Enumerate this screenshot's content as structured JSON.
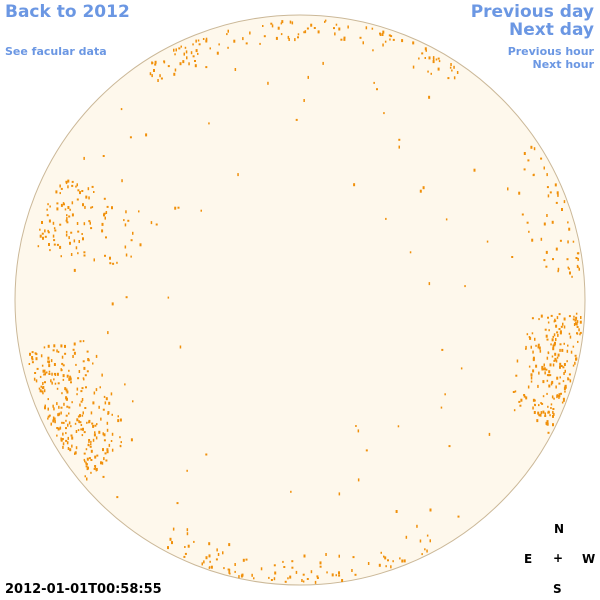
{
  "nav": {
    "back": "Back to 2012",
    "facular": "See facular data",
    "previous_day": "Previous day",
    "next_day": "Next day",
    "previous_hour": "Previous hour",
    "next_hour": "Next hour"
  },
  "timestamp": "2012-01-01T00:58:55",
  "compass": {
    "north": "N",
    "east": "E",
    "center": "+",
    "west": "W",
    "south": "S"
  }
}
